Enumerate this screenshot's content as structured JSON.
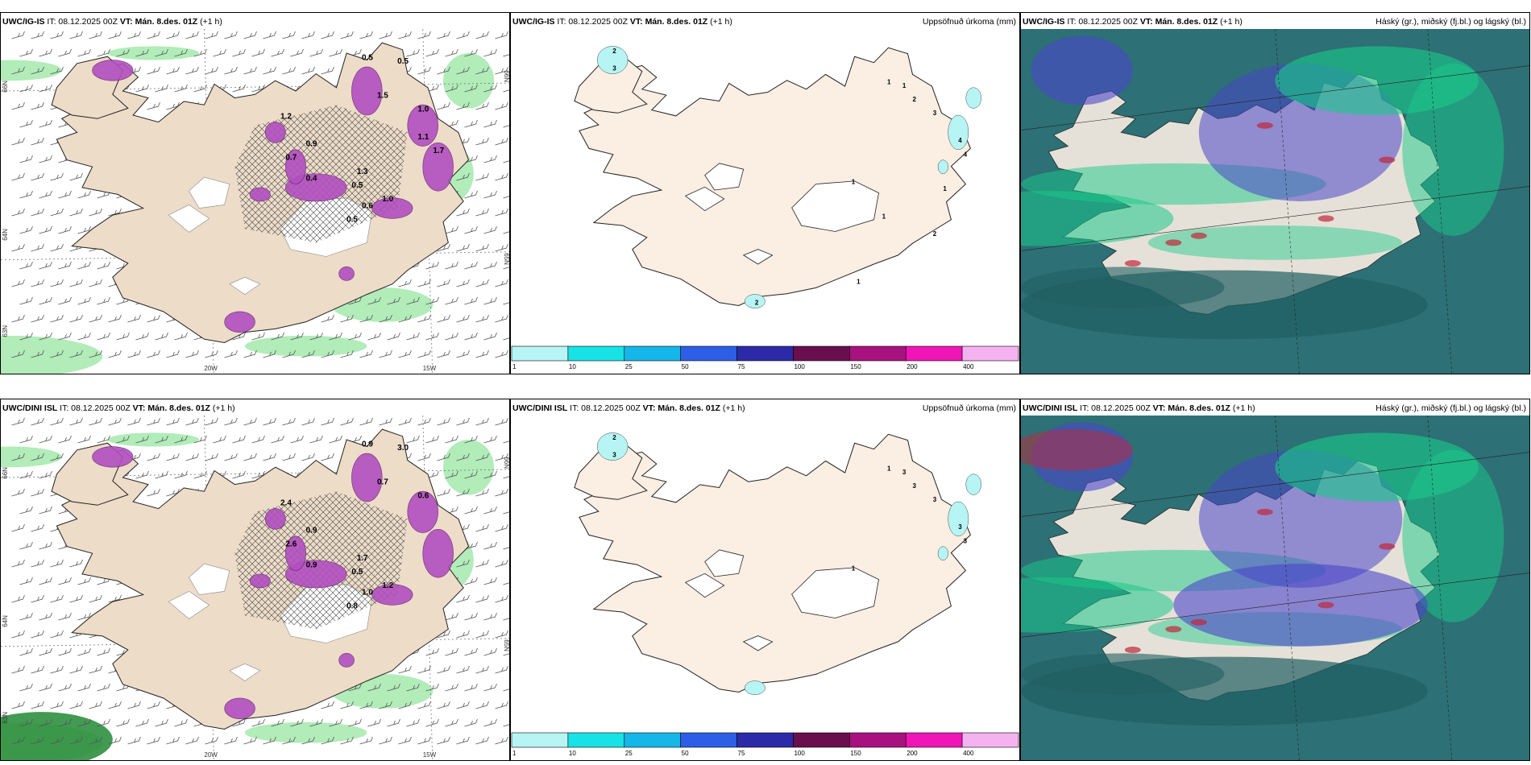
{
  "panels": [
    {
      "row": 0,
      "col": 0,
      "type": "wind",
      "model": "UWC/IG-IS",
      "it": "IT: 08.12.2025 00Z",
      "vt_label": "VT:",
      "vt": "Mán. 8.des. 01Z",
      "lead": "(+1 h)",
      "lat_labels": [
        "66N",
        "64N",
        "63N"
      ],
      "lat_labels_right": [
        "66N",
        "65N"
      ],
      "lon_labels": [
        "20W",
        "15W"
      ],
      "values": [
        "0.5",
        "0.5",
        "1.5",
        "1.0",
        "0.9",
        "0.7",
        "0.5",
        "0.6",
        "0.4",
        "1.2",
        "1.3",
        "1.0",
        "0.5",
        "1.1",
        "1.7"
      ]
    },
    {
      "row": 0,
      "col": 1,
      "type": "precip",
      "model": "UWC/IG-IS",
      "it": "IT: 08.12.2025 00Z",
      "vt_label": "VT:",
      "vt": "Mán. 8.des. 01Z",
      "lead": "(+1 h)",
      "title": "Uppsöfnuð úrkoma (mm)",
      "values": [
        "2",
        "3",
        "1",
        "1",
        "2",
        "3",
        "4",
        "4",
        "1",
        "1",
        "1",
        "2",
        "1",
        "2"
      ]
    },
    {
      "row": 0,
      "col": 2,
      "type": "cloud",
      "model": "UWC/IG-IS",
      "it": "IT: 08.12.2025 00Z",
      "vt_label": "VT:",
      "vt": "Mán. 8.des. 01Z",
      "lead": "(+1 h)",
      "title": "Háský (gr.), miðský (fj.bl.) og lágský (bl.)"
    },
    {
      "row": 1,
      "col": 0,
      "type": "wind",
      "model": "UWC/DINI ISL",
      "it": "IT: 08.12.2025 00Z",
      "vt_label": "VT:",
      "vt": "Mán. 8.des. 01Z",
      "lead": "(+1 h)",
      "lat_labels": [
        "66N",
        "64N",
        "63N"
      ],
      "lat_labels_right": [
        "66N",
        "65N"
      ],
      "lon_labels": [
        "20W",
        "15W"
      ],
      "values": [
        "0.9",
        "3.0",
        "0.7",
        "0.6",
        "0.9",
        "2.6",
        "0.5",
        "1.0",
        "0.9",
        "2.4",
        "1.7",
        "1.2",
        "0.8"
      ]
    },
    {
      "row": 1,
      "col": 1,
      "type": "precip",
      "model": "UWC/DINI ISL",
      "it": "IT: 08.12.2025 00Z",
      "vt_label": "VT:",
      "vt": "Mán. 8.des. 01Z",
      "lead": "(+1 h)",
      "title": "Uppsöfnuð úrkoma (mm)",
      "values": [
        "2",
        "3",
        "1",
        "3",
        "3",
        "3",
        "3",
        "3",
        "1"
      ]
    },
    {
      "row": 1,
      "col": 2,
      "type": "cloud",
      "model": "UWC/DINI ISL",
      "it": "IT: 08.12.2025 00Z",
      "vt_label": "VT:",
      "vt": "Mán. 8.des. 01Z",
      "lead": "(+1 h)",
      "title": "Háský (gr.), miðský (fj.bl.) og lágský (bl.)"
    }
  ],
  "colorbar": {
    "labels": [
      "1",
      "10",
      "25",
      "50",
      "75",
      "100",
      "150",
      "200",
      "400"
    ],
    "colors": [
      "#b7f5f5",
      "#17e3e6",
      "#15b6e8",
      "#2c5fe6",
      "#2c2aa8",
      "#6a0f4e",
      "#a8127f",
      "#ef15b6",
      "#f5b2f0"
    ]
  },
  "colors": {
    "land": "#eddcc8",
    "land_light": "#fbeee3",
    "precip_light": "#b7f5f5",
    "green": "#9de7a8",
    "purple": "#b24fc0",
    "sea_cloud": "#2d7075",
    "cloud_green": "#19c98a",
    "cloud_blue": "#4b46c9",
    "cloud_red": "#c0283a"
  }
}
